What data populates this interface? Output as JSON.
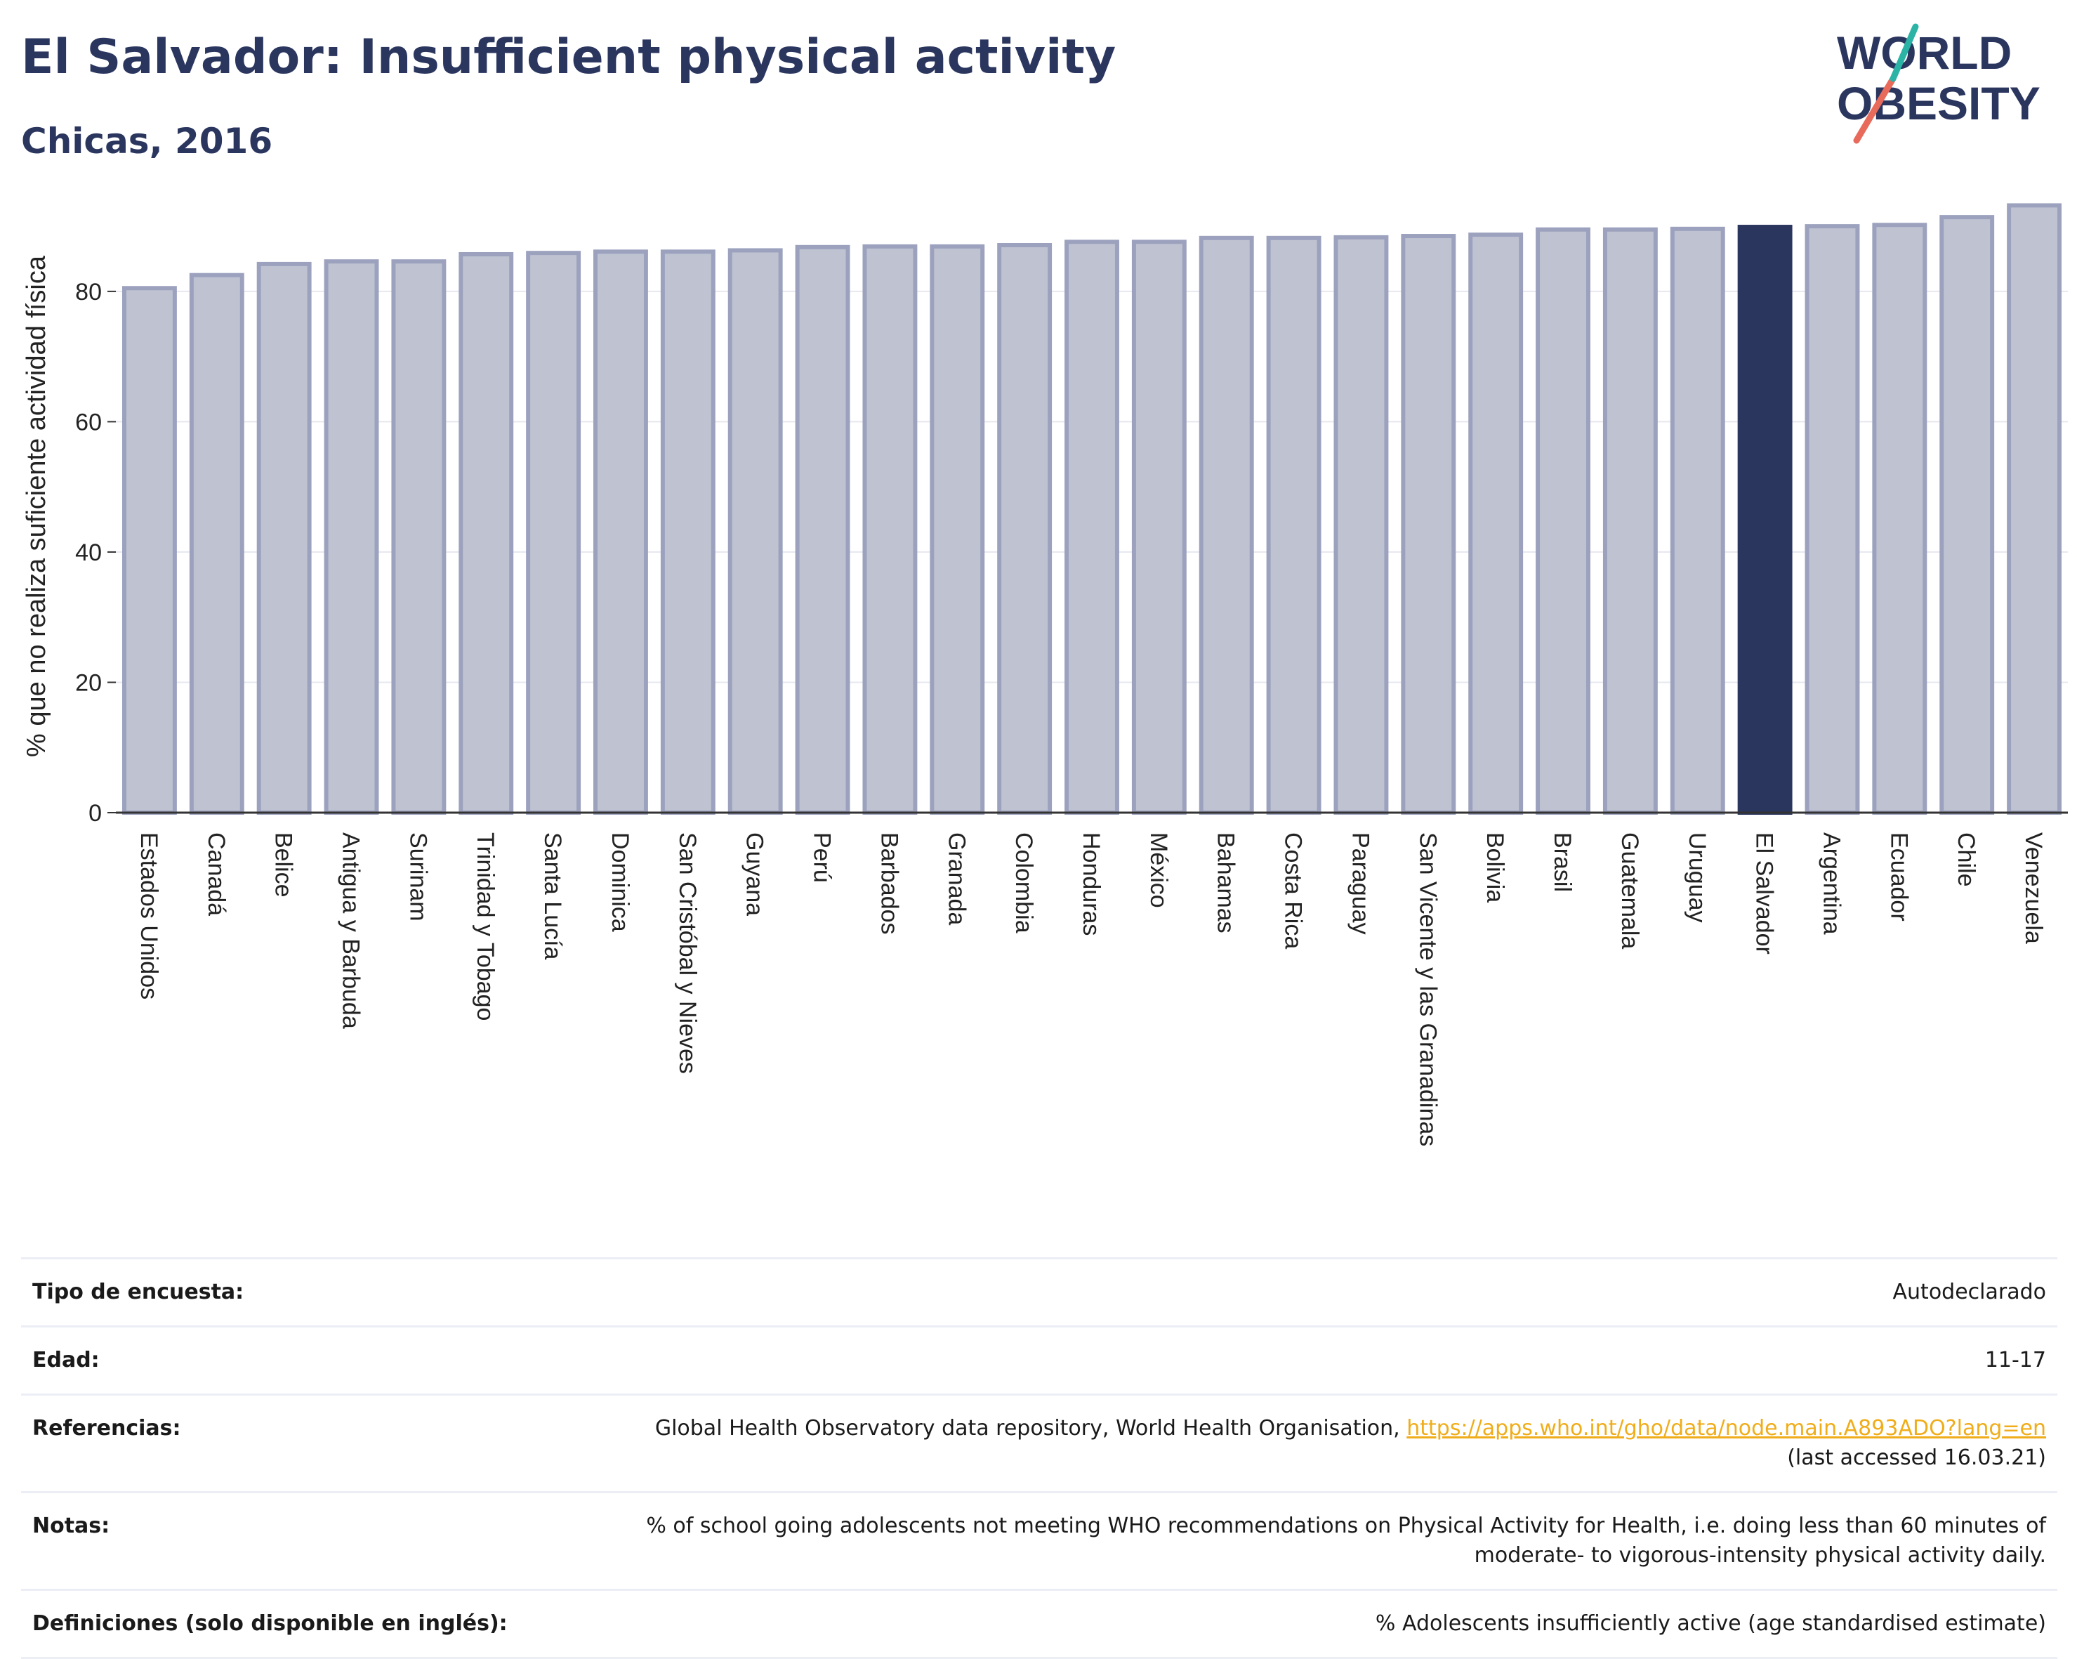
{
  "header": {
    "title": "El Salvador: Insufficient physical activity",
    "subtitle": "Chicas, 2016"
  },
  "logo": {
    "line1": "WORLD",
    "line2": "OBESITY",
    "accent_teal": "#2bb3a6",
    "accent_red": "#e86a5b"
  },
  "colors": {
    "bar": "#bfc3d1",
    "bar_border": "#9ca2be",
    "highlight": "#2b365f",
    "grid": "#e6e8ef",
    "text_primary": "#2b365f"
  },
  "chart_data": {
    "type": "bar",
    "ylabel": "% que no realiza suficiente actividad física",
    "ylim": [
      0,
      94
    ],
    "yticks": [
      0,
      20,
      40,
      60,
      80
    ],
    "grid": true,
    "highlight": "El Salvador",
    "categories": [
      "Estados Unidos",
      "Canadá",
      "Belice",
      "Antigua y Barbuda",
      "Surinam",
      "Trinidad y Tobago",
      "Santa Lucía",
      "Dominica",
      "San Cristóbal y Nieves",
      "Guyana",
      "Perú",
      "Barbados",
      "Granada",
      "Colombia",
      "Honduras",
      "México",
      "Bahamas",
      "Costa Rica",
      "Paraguay",
      "San Vicente y las Granadinas",
      "Bolivia",
      "Brasil",
      "Guatemala",
      "Uruguay",
      "El Salvador",
      "Argentina",
      "Ecuador",
      "Chile",
      "Venezuela"
    ],
    "values": [
      80.5,
      82.5,
      84.2,
      84.6,
      84.6,
      85.7,
      85.9,
      86.1,
      86.1,
      86.3,
      86.8,
      86.9,
      86.9,
      87.1,
      87.6,
      87.6,
      88.2,
      88.2,
      88.3,
      88.5,
      88.7,
      89.5,
      89.5,
      89.6,
      89.9,
      90.0,
      90.2,
      91.4,
      93.2
    ]
  },
  "meta": {
    "rows": [
      {
        "label": "Tipo de encuesta:",
        "value": "Autodeclarado"
      },
      {
        "label": "Edad:",
        "value": "11-17"
      },
      {
        "label": "Referencias:",
        "value": "Global Health Observatory data repository, World Health Organisation,",
        "link": "https://apps.who.int/gho/data/node.main.A893ADO?lang=en",
        "value2": "(last accessed 16.03.21)"
      },
      {
        "label": "Notas:",
        "value": "% of school going adolescents not meeting WHO recommendations on Physical Activity for Health, i.e. doing less than 60 minutes of moderate- to vigorous-intensity physical activity daily."
      },
      {
        "label": "Definiciones (solo disponible en inglés):",
        "value": "% Adolescents insufficiently active (age standardised estimate)"
      }
    ]
  }
}
